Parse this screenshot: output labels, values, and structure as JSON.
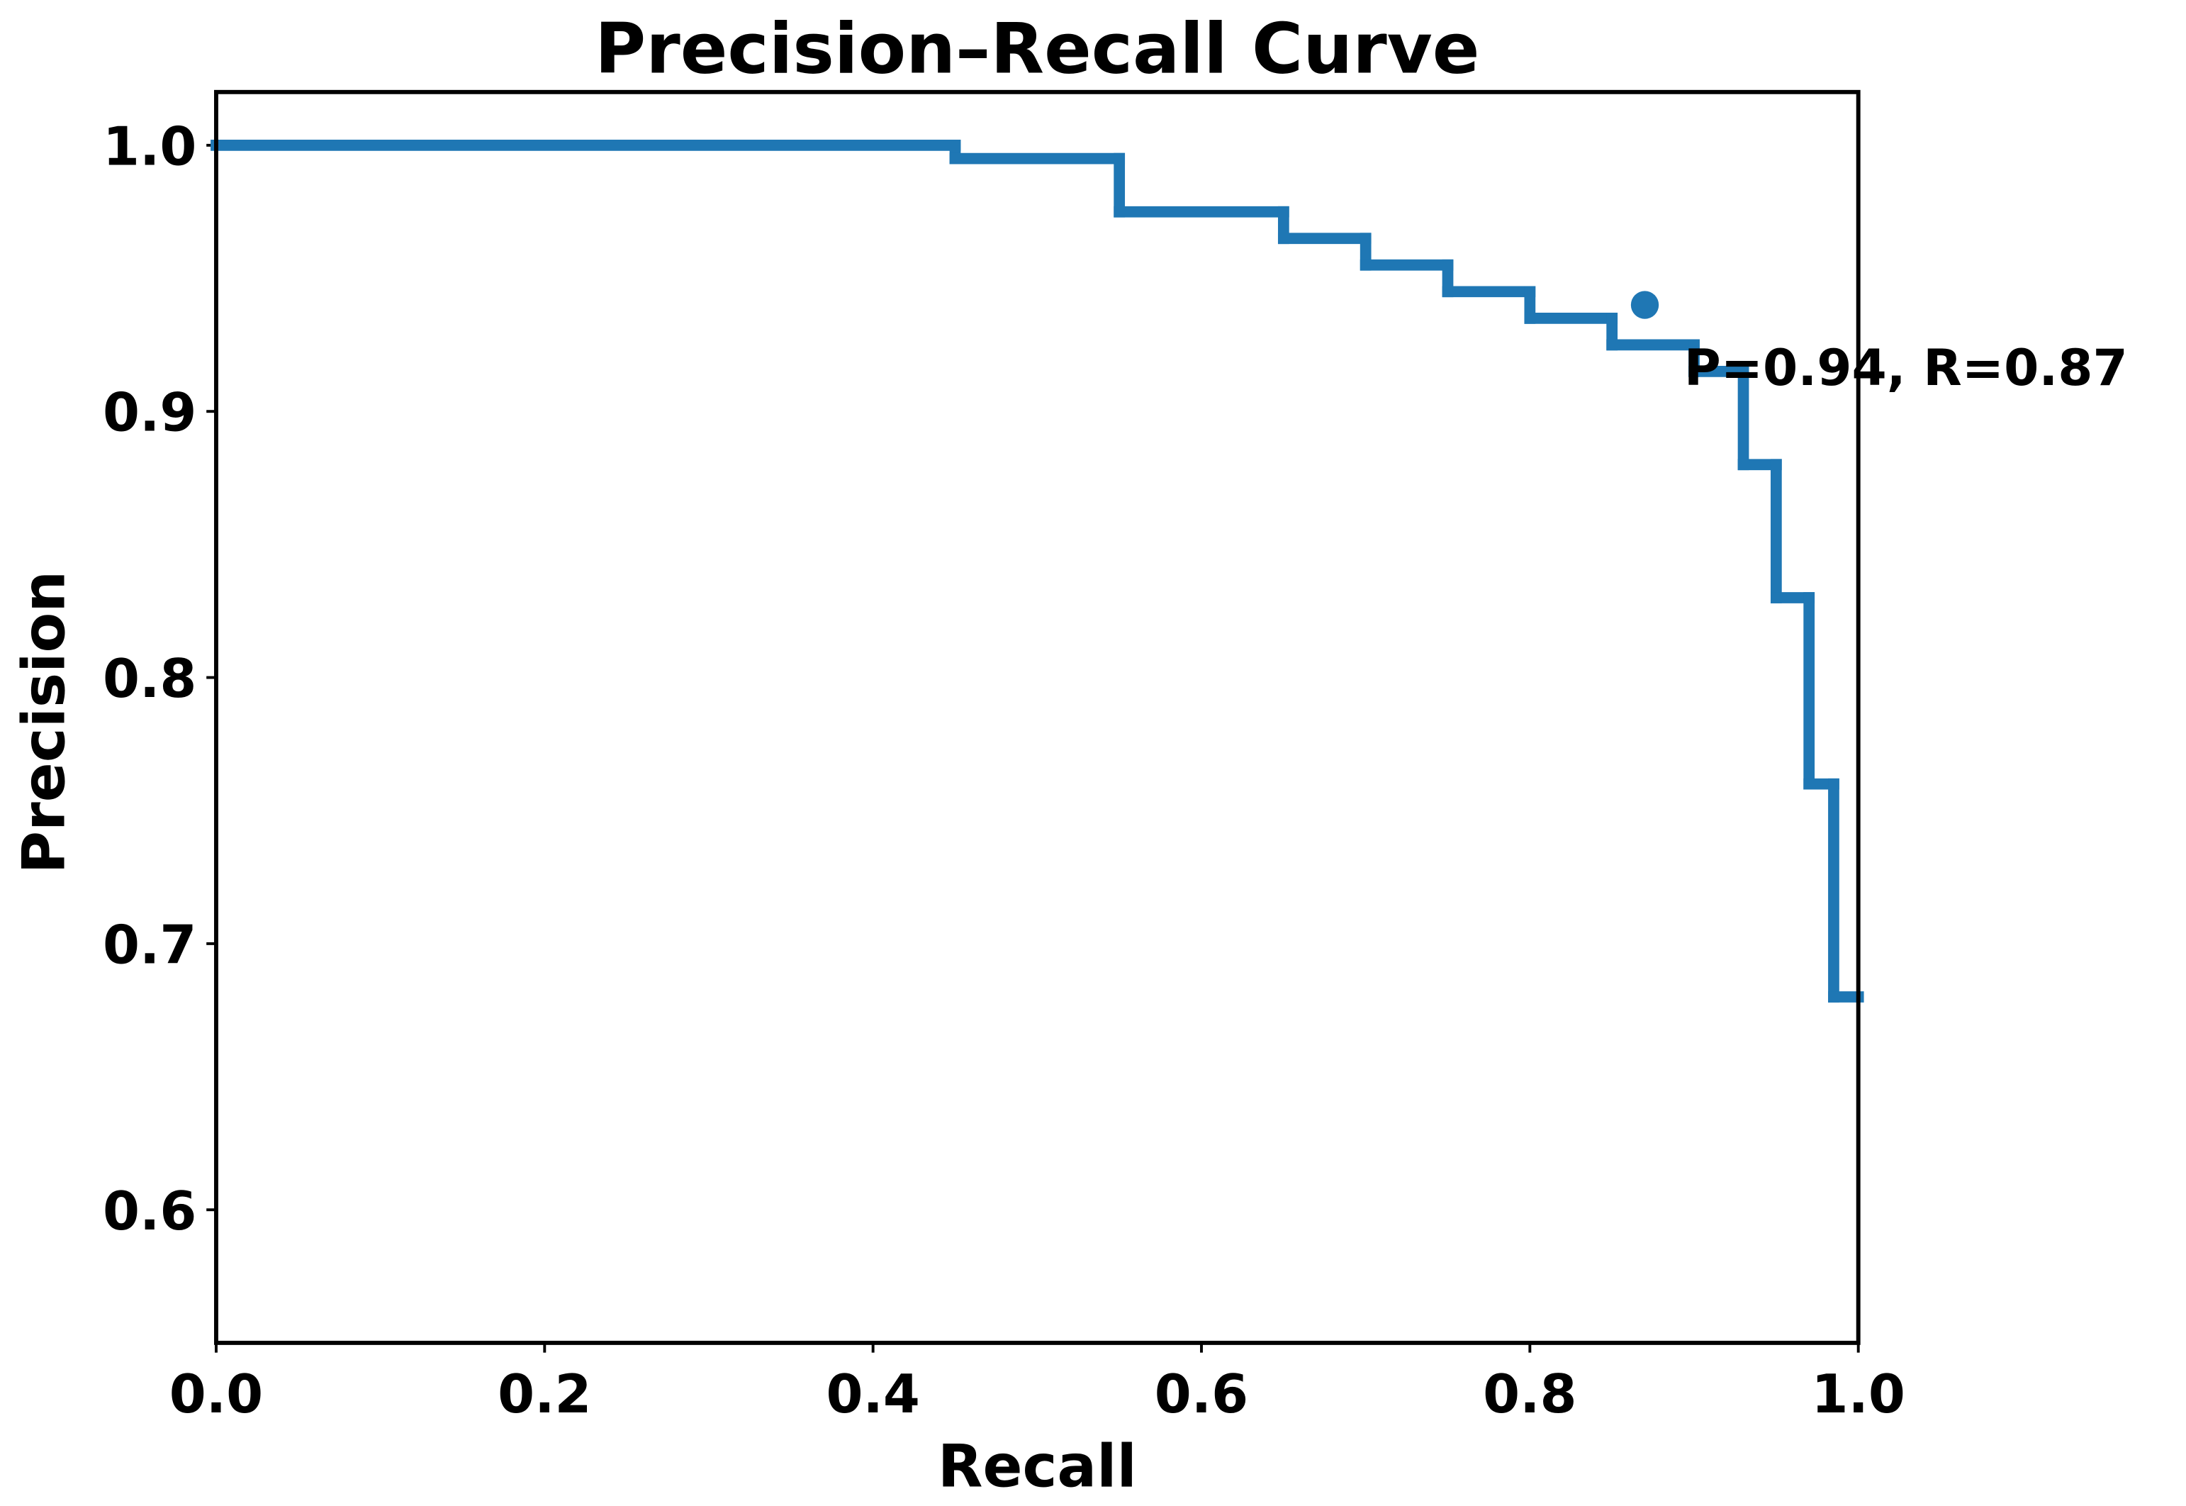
{
  "chart_data": {
    "type": "step",
    "title": "Precision–Recall Curve",
    "x_label": "Recall",
    "y_label": "Precision",
    "x": [
      0,
      0.45,
      0.55,
      0.65,
      0.7,
      0.75,
      0.8,
      0.85,
      0.9,
      0.93,
      0.95,
      0.97,
      0.985
    ],
    "values": [
      1.0,
      0.995,
      0.975,
      0.965,
      0.955,
      0.945,
      0.935,
      0.925,
      0.915,
      0.88,
      0.83,
      0.76,
      0.68
    ],
    "color": "#1f77b4",
    "point": {
      "x": 0.87,
      "y": 0.94,
      "label": "P=0.94, R=0.87"
    },
    "xlim": [
      0,
      1.0
    ],
    "ylim": [
      0.55,
      1.02
    ],
    "xticks": [
      {
        "value": 0,
        "label": "0.0"
      },
      0.2,
      0.4,
      0.6,
      0.8,
      {
        "value": 1.0,
        "label": "1.0"
      }
    ],
    "yticks": [
      0.6,
      0.7,
      0.8,
      0.9,
      {
        "value": 1.0,
        "label": "1.0"
      }
    ],
    "grid": false
  }
}
